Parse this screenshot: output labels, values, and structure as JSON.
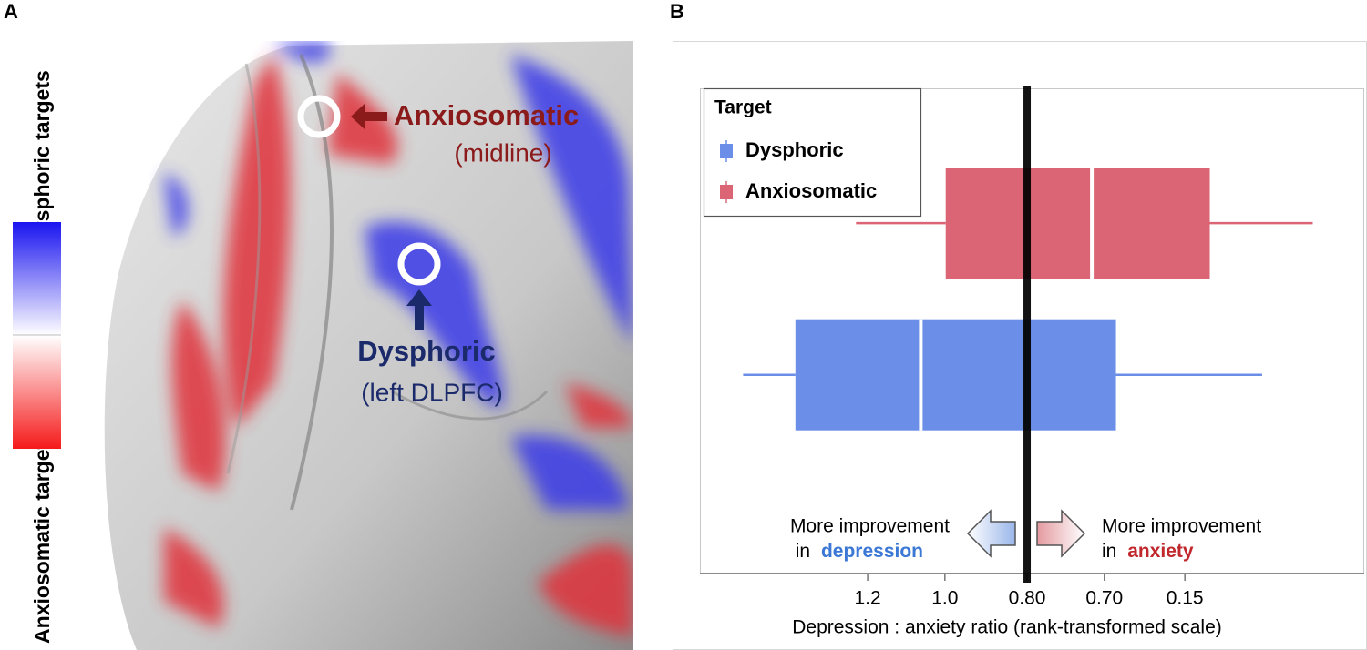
{
  "panel_a": {
    "label": "A",
    "colorbar_top": "Dysphoric targets",
    "colorbar_bottom": "Anxiosomatic targets",
    "anxio_label": "Anxiosomatic",
    "anxio_sub": "(midline)",
    "dys_label": "Dysphoric",
    "dys_sub": "(left DLPFC)"
  },
  "chart_data": {
    "type": "box",
    "panel_label": "B",
    "legend_title": "Target",
    "legend": "upper left",
    "xlabel": "Depression : anxiety ratio (rank-transformed scale)",
    "xlim": [
      0,
      8
    ],
    "xticks": [
      {
        "value": 2.02,
        "label": "1.2"
      },
      {
        "value": 2.95,
        "label": "1.0"
      },
      {
        "value": 3.94,
        "label": "0.80"
      },
      {
        "value": 4.87,
        "label": "0.70"
      },
      {
        "value": 5.84,
        "label": "0.15"
      }
    ],
    "reference_line": 3.94,
    "series": [
      {
        "name": "Dysphoric",
        "color": "#6b8ee8",
        "low": 0.52,
        "q1": 1.15,
        "median": 2.66,
        "q3": 5.01,
        "high": 6.77
      },
      {
        "name": "Anxiosomatic",
        "color": "#db6574",
        "low": 1.88,
        "q1": 2.96,
        "median": 4.72,
        "q3": 6.14,
        "high": 7.38
      }
    ],
    "annotation_left": {
      "line1": "More improvement",
      "prefix": "in",
      "word": "depression",
      "color": "#3b78d6"
    },
    "annotation_right": {
      "line1": "More improvement",
      "prefix": "in",
      "word": "anxiety",
      "color": "#c0282d"
    }
  }
}
